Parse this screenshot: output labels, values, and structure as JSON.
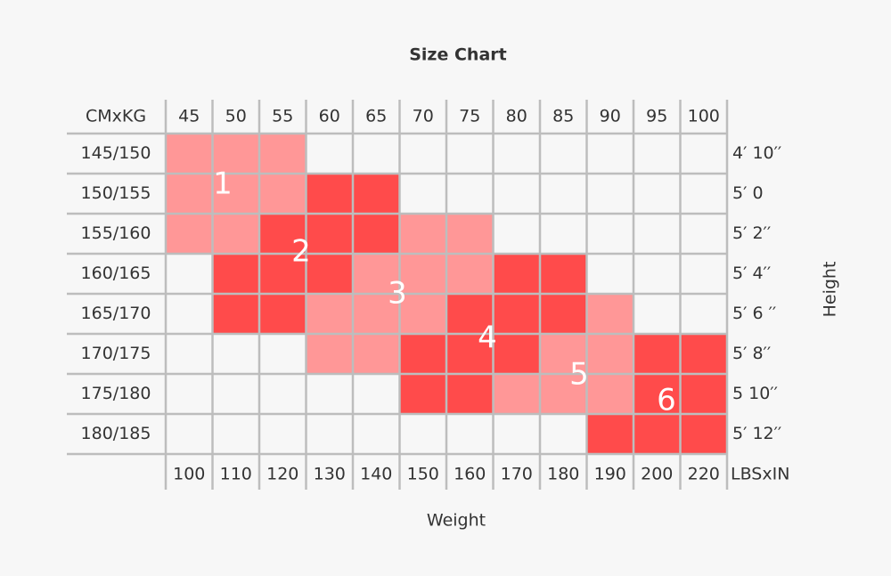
{
  "title": "Size Chart",
  "corner_label": "CMxKG",
  "bottom_corner_label": "LBSxIN",
  "x_axis_label": "Weight",
  "y_axis_label": "Height",
  "kg_columns": [
    "45",
    "50",
    "55",
    "60",
    "65",
    "70",
    "75",
    "80",
    "85",
    "90",
    "95",
    "100"
  ],
  "lbs_columns": [
    "100",
    "110",
    "120",
    "130",
    "140",
    "150",
    "160",
    "170",
    "180",
    "190",
    "200",
    "220"
  ],
  "cm_rows": [
    "145/150",
    "150/155",
    "155/160",
    "160/165",
    "165/170",
    "170/175",
    "175/180",
    "180/185"
  ],
  "in_rows": [
    "4′ 10′′",
    "5′ 0",
    "5′ 2′′",
    "5′ 4′′",
    "5′ 6 ′′",
    "5′ 8′′",
    "5 10′′",
    "5′ 12′′"
  ],
  "zones": [
    {
      "label": "1",
      "color": "#ff9797"
    },
    {
      "label": "2",
      "color": "#ff4b4b"
    },
    {
      "label": "3",
      "color": "#ff9797"
    },
    {
      "label": "4",
      "color": "#ff4b4b"
    },
    {
      "label": "5",
      "color": "#ff9797"
    },
    {
      "label": "6",
      "color": "#ff4b4b"
    }
  ]
}
